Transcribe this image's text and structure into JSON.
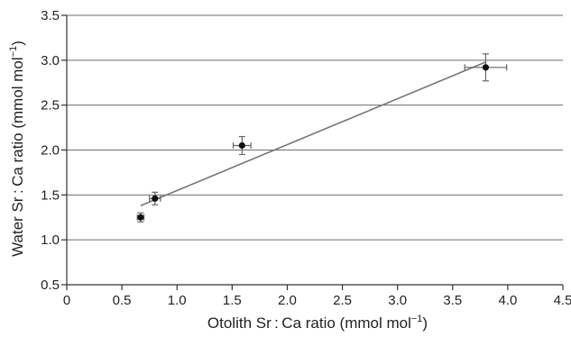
{
  "chart_data": {
    "type": "scatter",
    "title": "",
    "xlabel": "Otolith Sr : Ca ratio (mmol mol",
    "xlabel_sup": "−1",
    "xlabel_end": ")",
    "ylabel": "Water Sr : Ca ratio (mmol mol",
    "ylabel_sup": "−1",
    "ylabel_end": ")",
    "xlim": [
      0,
      4.5
    ],
    "ylim": [
      0.5,
      3.5
    ],
    "x_ticks": [
      "0",
      "0.5",
      "1.0",
      "1.5",
      "2.0",
      "2.5",
      "3.0",
      "3.5",
      "4.0",
      "4.5"
    ],
    "y_ticks": [
      "0.5",
      "1.0",
      "1.5",
      "2.0",
      "2.5",
      "3.0",
      "3.5"
    ],
    "grid_y": true,
    "points": [
      {
        "x": 0.67,
        "y": 1.25,
        "x_err": 0.03,
        "y_err": 0.05
      },
      {
        "x": 0.8,
        "y": 1.46,
        "x_err": 0.05,
        "y_err": 0.07
      },
      {
        "x": 1.59,
        "y": 2.05,
        "x_err": 0.08,
        "y_err": 0.1
      },
      {
        "x": 3.8,
        "y": 2.92,
        "x_err": 0.19,
        "y_err": 0.15
      }
    ],
    "fit_line": {
      "x0": 0.67,
      "y0": 1.38,
      "x1": 3.8,
      "y1": 2.98
    }
  }
}
